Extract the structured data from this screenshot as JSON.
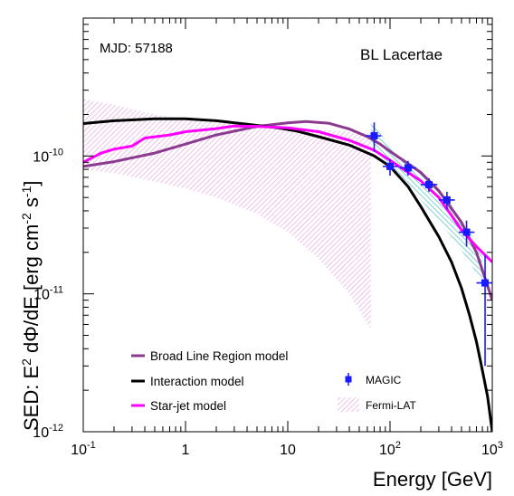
{
  "chart_data": {
    "type": "line",
    "xscale": "log",
    "yscale": "log",
    "xlim": [
      0.1,
      1000
    ],
    "ylim": [
      1e-12,
      1e-09
    ],
    "xlabel": "Energy [GeV]",
    "ylabel_parts": {
      "p1": "SED: E",
      "sup1": "2",
      "p2": " dΦ/dE [erg cm",
      "sup2": "-2",
      "p3": " s",
      "sup3": "-1",
      "p4": "]"
    },
    "x_ticks": [
      {
        "value": 0.1,
        "label": "10",
        "sup": "-1"
      },
      {
        "value": 1,
        "label": "1",
        "sup": ""
      },
      {
        "value": 10,
        "label": "10",
        "sup": ""
      },
      {
        "value": 100,
        "label": "10",
        "sup": "2"
      },
      {
        "value": 1000,
        "label": "10",
        "sup": "3"
      }
    ],
    "y_ticks": [
      {
        "value": 1e-12,
        "label": "10",
        "sup": "-12"
      },
      {
        "value": 1e-11,
        "label": "10",
        "sup": "-11"
      },
      {
        "value": 1e-10,
        "label": "10",
        "sup": "-10"
      }
    ],
    "annotations": {
      "mjd": "MJD: 57188",
      "source": "BL Lacertae"
    },
    "colors": {
      "blr": "#8b3a8f",
      "interaction": "#000000",
      "starjet": "#ff00ff",
      "magic": "#1a1aff",
      "fermi_band": "#e9b8e6",
      "magic_band": "#5fc8c8"
    },
    "series": [
      {
        "name": "Broad Line Region model",
        "color": "#8b3a8f",
        "points": [
          [
            0.1,
            8.4e-11
          ],
          [
            0.2,
            9.1e-11
          ],
          [
            0.5,
            1.05e-10
          ],
          [
            1,
            1.22e-10
          ],
          [
            2,
            1.42e-10
          ],
          [
            5,
            1.64e-10
          ],
          [
            10,
            1.74e-10
          ],
          [
            15,
            1.78e-10
          ],
          [
            25,
            1.73e-10
          ],
          [
            40,
            1.57e-10
          ],
          [
            60,
            1.38e-10
          ],
          [
            80,
            1.22e-10
          ],
          [
            100,
            1.08e-10
          ],
          [
            150,
            8.8e-11
          ],
          [
            200,
            7.6e-11
          ],
          [
            300,
            5.6e-11
          ],
          [
            500,
            3.3e-11
          ],
          [
            700,
            2e-11
          ],
          [
            850,
            1.3e-11
          ],
          [
            1000,
            9e-12
          ]
        ]
      },
      {
        "name": "Interaction model",
        "color": "#000000",
        "points": [
          [
            0.1,
            1.72e-10
          ],
          [
            0.2,
            1.8e-10
          ],
          [
            0.5,
            1.86e-10
          ],
          [
            1,
            1.86e-10
          ],
          [
            2,
            1.8e-10
          ],
          [
            4,
            1.7e-10
          ],
          [
            8,
            1.6e-10
          ],
          [
            12,
            1.52e-10
          ],
          [
            20,
            1.38e-10
          ],
          [
            40,
            1.2e-10
          ],
          [
            70,
            1e-10
          ],
          [
            100,
            8.4e-11
          ],
          [
            150,
            6e-11
          ],
          [
            200,
            4.3e-11
          ],
          [
            300,
            2.6e-11
          ],
          [
            400,
            1.7e-11
          ],
          [
            500,
            1.1e-11
          ],
          [
            600,
            7e-12
          ],
          [
            700,
            4.5e-12
          ],
          [
            800,
            2.8e-12
          ],
          [
            900,
            1.8e-12
          ],
          [
            1000,
            1e-12
          ]
        ]
      },
      {
        "name": "Star-jet model",
        "color": "#ff00ff",
        "points": [
          [
            0.1,
            9e-11
          ],
          [
            0.15,
            1.05e-10
          ],
          [
            0.2,
            1.12e-10
          ],
          [
            0.3,
            1.18e-10
          ],
          [
            0.4,
            1.35e-10
          ],
          [
            0.7,
            1.42e-10
          ],
          [
            1,
            1.5e-10
          ],
          [
            2,
            1.58e-10
          ],
          [
            3,
            1.65e-10
          ],
          [
            5,
            1.64e-10
          ],
          [
            10,
            1.6e-10
          ],
          [
            20,
            1.5e-10
          ],
          [
            40,
            1.3e-10
          ],
          [
            70,
            1.1e-10
          ],
          [
            100,
            9.3e-11
          ],
          [
            150,
            7.6e-11
          ],
          [
            200,
            6.6e-11
          ],
          [
            300,
            5e-11
          ],
          [
            400,
            3.7e-11
          ],
          [
            500,
            2.9e-11
          ],
          [
            700,
            2.2e-11
          ],
          [
            1000,
            1.7e-11
          ]
        ]
      }
    ],
    "fermi_band": {
      "name": "Fermi-LAT",
      "x": [
        0.1,
        0.2,
        0.5,
        1,
        2,
        5,
        10,
        20,
        40,
        65
      ],
      "upper": [
        2.6e-10,
        2.35e-10,
        2e-10,
        1.85e-10,
        1.75e-10,
        1.68e-10,
        1.62e-10,
        1.55e-10,
        1.5e-10,
        1.45e-10
      ],
      "lower": [
        8e-11,
        7.5e-11,
        6.5e-11,
        5.8e-11,
        5e-11,
        3.8e-11,
        2.8e-11,
        1.8e-11,
        1e-11,
        5.5e-12
      ]
    },
    "magic_band": {
      "x": [
        65,
        100,
        200,
        400,
        600,
        800
      ],
      "upper": [
        1.8e-10,
        1.18e-10,
        7.5e-11,
        4.4e-11,
        2.8e-11,
        2e-11
      ],
      "lower": [
        1.3e-10,
        8.2e-11,
        4.8e-11,
        2.6e-11,
        1.7e-11,
        1.2e-11
      ]
    },
    "magic_points": {
      "name": "MAGIC",
      "points": [
        {
          "x": 70,
          "y": 1.4e-10,
          "xlo": 58,
          "xhi": 82,
          "ylo": 1.07e-10,
          "yhi": 1.75e-10
        },
        {
          "x": 100,
          "y": 8.4e-11,
          "xlo": 85,
          "xhi": 120,
          "ylo": 7.2e-11,
          "yhi": 9.5e-11
        },
        {
          "x": 150,
          "y": 8.2e-11,
          "xlo": 125,
          "xhi": 180,
          "ylo": 7.2e-11,
          "yhi": 9.2e-11
        },
        {
          "x": 240,
          "y": 6.2e-11,
          "xlo": 200,
          "xhi": 290,
          "ylo": 5.5e-11,
          "yhi": 6.9e-11
        },
        {
          "x": 360,
          "y": 4.8e-11,
          "xlo": 300,
          "xhi": 430,
          "ylo": 4.1e-11,
          "yhi": 5.5e-11
        },
        {
          "x": 560,
          "y": 2.8e-11,
          "xlo": 470,
          "xhi": 670,
          "ylo": 2.2e-11,
          "yhi": 3.4e-11
        },
        {
          "x": 850,
          "y": 1.2e-11,
          "xlo": 700,
          "xhi": 1000,
          "ylo": 3e-12,
          "yhi": 1.9e-11
        }
      ]
    },
    "legend": [
      {
        "label": "Broad Line Region model",
        "kind": "line",
        "key": "blr"
      },
      {
        "label": "Interaction model",
        "kind": "line",
        "key": "interaction"
      },
      {
        "label": "Star-jet model",
        "kind": "line",
        "key": "starjet"
      },
      {
        "label": "MAGIC",
        "kind": "marker",
        "key": "magic"
      },
      {
        "label": "Fermi-LAT",
        "kind": "band",
        "key": "fermi_band"
      }
    ]
  }
}
